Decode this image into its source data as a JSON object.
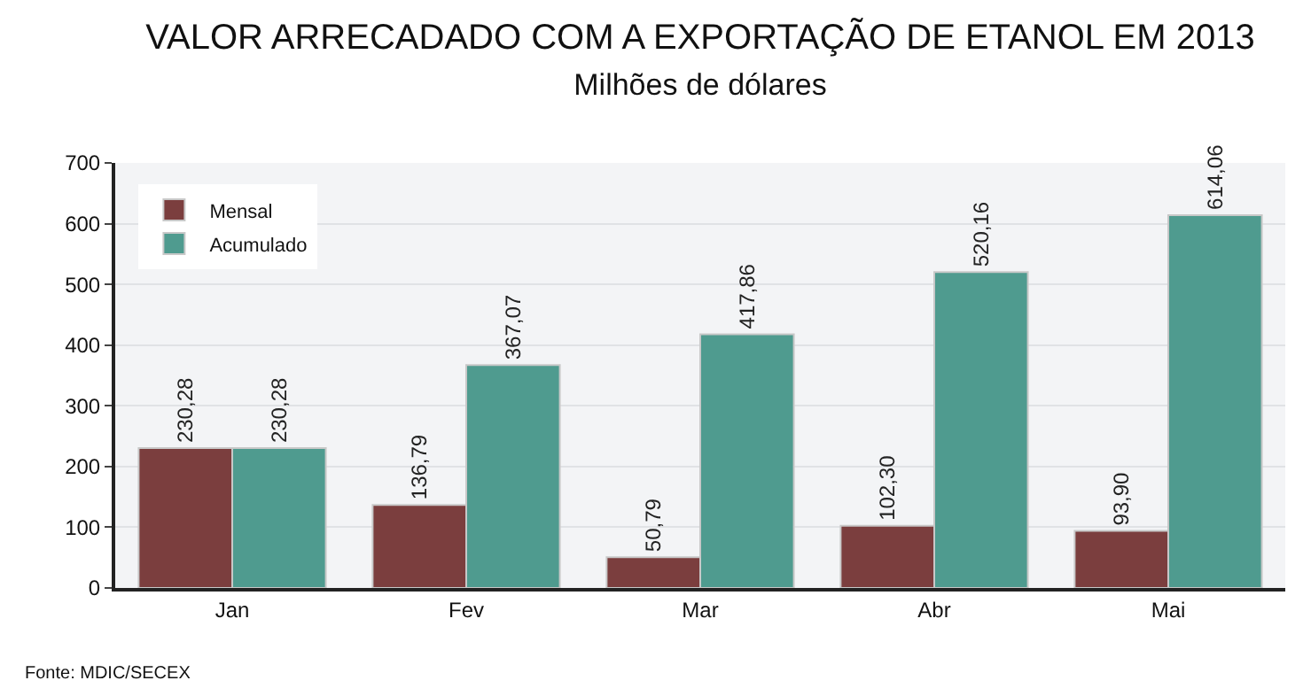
{
  "chart_data": {
    "type": "bar",
    "title": "VALOR ARRECADADO COM A EXPORTAÇÃO DE ETANOL EM 2013",
    "subtitle": "Milhões de dólares",
    "categories": [
      "Jan",
      "Fev",
      "Mar",
      "Abr",
      "Mai"
    ],
    "series": [
      {
        "name": "Mensal",
        "color": "#7b3e3e",
        "values": [
          230.28,
          136.79,
          50.79,
          102.3,
          93.9
        ],
        "value_labels": [
          "230,28",
          "136,79",
          "50,79",
          "102,30",
          "93,90"
        ]
      },
      {
        "name": "Acumulado",
        "color": "#4f9b8f",
        "values": [
          230.28,
          367.07,
          417.86,
          520.16,
          614.06
        ],
        "value_labels": [
          "230,28",
          "367,07",
          "417,86",
          "520,16",
          "614,06"
        ]
      }
    ],
    "ylim": [
      0,
      700
    ],
    "yticks": [
      0,
      100,
      200,
      300,
      400,
      500,
      600,
      700
    ],
    "grid": "y",
    "legend": "top left",
    "annotations": [
      "Fonte: MDIC/SECEX"
    ]
  }
}
